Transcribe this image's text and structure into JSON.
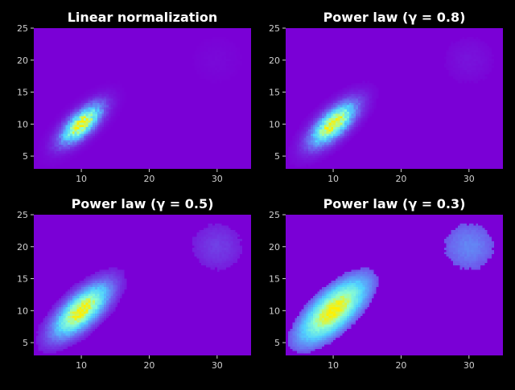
{
  "chart_data": [
    {
      "type": "heatmap",
      "title": "Linear normalization",
      "xlabel": "",
      "ylabel": "",
      "xlim": [
        3,
        35
      ],
      "ylim": [
        3,
        25
      ],
      "xticks": [
        10,
        20,
        30
      ],
      "yticks": [
        5,
        10,
        15,
        20,
        25
      ],
      "gamma": 1.0,
      "clusters": [
        {
          "center": [
            10,
            10
          ],
          "weight": 1.0
        },
        {
          "center": [
            30,
            20
          ],
          "weight": 0.02
        }
      ]
    },
    {
      "type": "heatmap",
      "title": "Power law (γ = 0.8)",
      "xlabel": "",
      "ylabel": "",
      "xlim": [
        3,
        35
      ],
      "ylim": [
        3,
        25
      ],
      "xticks": [
        10,
        20,
        30
      ],
      "yticks": [
        5,
        10,
        15,
        20,
        25
      ],
      "gamma": 0.8,
      "clusters": [
        {
          "center": [
            10,
            10
          ],
          "weight": 1.0
        },
        {
          "center": [
            30,
            20
          ],
          "weight": 0.02
        }
      ]
    },
    {
      "type": "heatmap",
      "title": "Power law (γ = 0.5)",
      "xlabel": "",
      "ylabel": "",
      "xlim": [
        3,
        35
      ],
      "ylim": [
        3,
        25
      ],
      "xticks": [
        10,
        20,
        30
      ],
      "yticks": [
        5,
        10,
        15,
        20,
        25
      ],
      "gamma": 0.5,
      "clusters": [
        {
          "center": [
            10,
            10
          ],
          "weight": 1.0
        },
        {
          "center": [
            30,
            20
          ],
          "weight": 0.02
        }
      ]
    },
    {
      "type": "heatmap",
      "title": "Power law (γ = 0.3)",
      "xlabel": "",
      "ylabel": "",
      "xlim": [
        3,
        35
      ],
      "ylim": [
        3,
        25
      ],
      "xticks": [
        10,
        20,
        30
      ],
      "yticks": [
        5,
        10,
        15,
        20,
        25
      ],
      "gamma": 0.3,
      "clusters": [
        {
          "center": [
            10,
            10
          ],
          "weight": 1.0
        },
        {
          "center": [
            30,
            20
          ],
          "weight": 0.02
        }
      ]
    }
  ],
  "colors": {
    "background": "#000000",
    "axes_face": "#7a00d6",
    "colormap": [
      "#7a00d6",
      "#6a6cf0",
      "#4fd2ff",
      "#8cffd0",
      "#fff000"
    ]
  }
}
